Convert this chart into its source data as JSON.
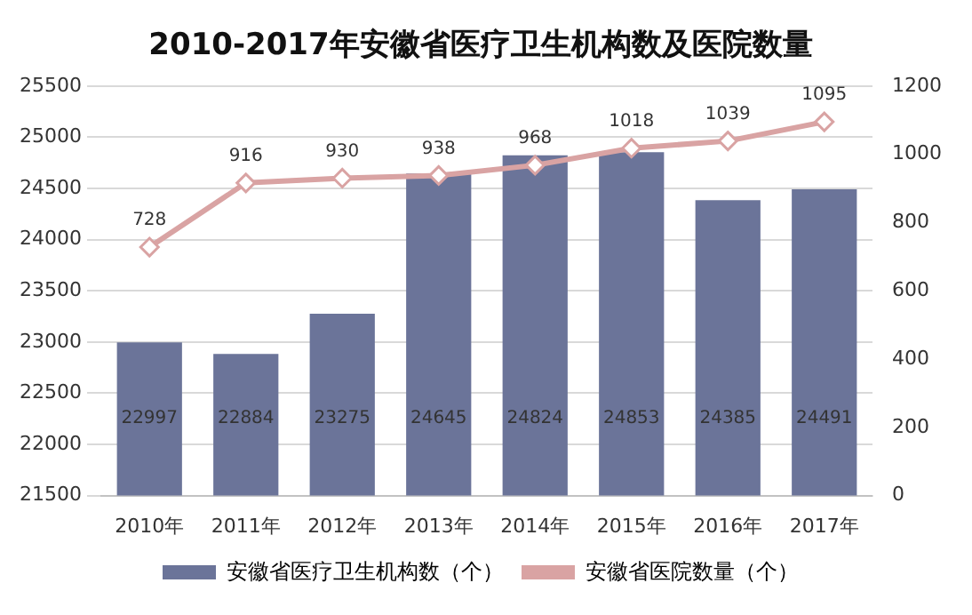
{
  "chart_data": {
    "type": "bar",
    "title": "2010-2017年安徽省医疗卫生机构数及医院数量",
    "categories": [
      "2010年",
      "2011年",
      "2012年",
      "2013年",
      "2014年",
      "2015年",
      "2016年",
      "2017年"
    ],
    "series": [
      {
        "name": "安徽省医疗卫生机构数（个）",
        "color": "#6b7499",
        "values": [
          22997,
          22884,
          23275,
          24645,
          24824,
          24853,
          24385,
          24491
        ]
      },
      {
        "name": "安徽省医院数量（个）",
        "type": "line",
        "axis": "y2",
        "color": "#d9a3a3",
        "marker": "diamond",
        "values": [
          728,
          916,
          930,
          938,
          968,
          1018,
          1039,
          1095
        ]
      }
    ],
    "ylim": [
      21500,
      25500
    ],
    "yticks": [
      21500,
      22000,
      22500,
      23000,
      23500,
      24000,
      24500,
      25000,
      25500
    ],
    "y2lim": [
      0,
      1200
    ],
    "y2ticks": [
      0,
      200,
      400,
      600,
      800,
      1000,
      1200
    ],
    "grid": "y",
    "legend": "bottom",
    "data_labels": true
  }
}
